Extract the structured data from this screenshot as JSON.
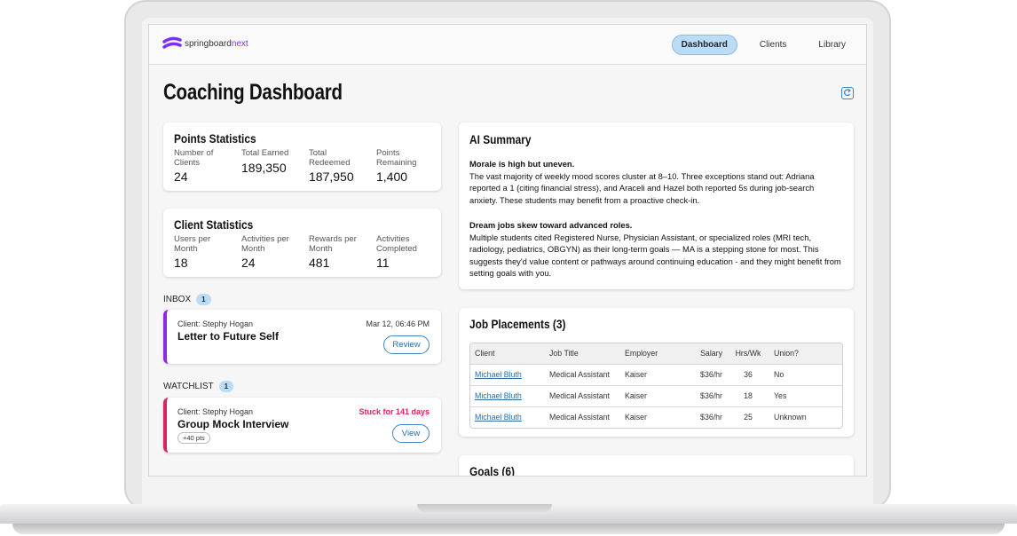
{
  "header": {
    "logo": {
      "brand": "springboard",
      "suffix": "next"
    },
    "nav": [
      {
        "label": "Dashboard",
        "active": true
      },
      {
        "label": "Clients",
        "active": false
      },
      {
        "label": "Library",
        "active": false
      }
    ]
  },
  "page_title": "Coaching Dashboard",
  "points_statistics": {
    "title": "Points Statistics",
    "stats": [
      {
        "label": "Number of Clients",
        "value": "24"
      },
      {
        "label": "Total Earned",
        "value": "189,350"
      },
      {
        "label": "Total Redeemed",
        "value": "187,950"
      },
      {
        "label": "Points Remaining",
        "value": "1,400"
      }
    ]
  },
  "client_statistics": {
    "title": "Client Statistics",
    "stats": [
      {
        "label": "Users per Month",
        "value": "18"
      },
      {
        "label": "Activities per Month",
        "value": "24"
      },
      {
        "label": "Rewards per Month",
        "value": "481"
      },
      {
        "label": "Activities Completed",
        "value": "11"
      }
    ]
  },
  "inbox": {
    "label": "INBOX",
    "count": "1",
    "items": [
      {
        "client": "Client: Stephy Hogan",
        "title": "Letter to Future Self",
        "date": "Mar 12, 06:46 PM",
        "action": "Review"
      }
    ]
  },
  "watchlist": {
    "label": "WATCHLIST",
    "count": "1",
    "items": [
      {
        "client": "Client: Stephy Hogan",
        "title": "Group Mock Interview",
        "status": "Stuck for 141 days",
        "badge": "+40 pts",
        "action": "View"
      }
    ]
  },
  "ai_summary": {
    "title": "AI Summary",
    "sections": [
      {
        "heading": "Morale is high but uneven.",
        "body": "The vast majority of weekly mood scores cluster at 8–10. Three exceptions stand out: Adriana reported a 1 (citing financial stress), and Araceli and Hazel both reported 5s during job-search anxiety. These students may benefit from a proactive check-in."
      },
      {
        "heading": "Dream jobs skew toward advanced roles.",
        "body": "Multiple students cited Registered Nurse, Physician Assistant, or specialized roles (MRI tech, radiology, pediatrics, OBGYN) as their long-term goals — MA is a stepping stone for most. This suggests they'd value content or pathways around continuing education - and they might benefit from setting goals with you."
      }
    ]
  },
  "job_placements": {
    "title": "Job Placements (3)",
    "columns": [
      "Client",
      "Job Title",
      "Employer",
      "Salary",
      "Hrs/Wk",
      "Union?"
    ],
    "rows": [
      [
        "Michael Bluth",
        "Medical Assistant",
        "Kaiser",
        "$36/hr",
        "36",
        "No"
      ],
      [
        "Michael Bluth",
        "Medical Assistant",
        "Kaiser",
        "$36/hr",
        "18",
        "Yes"
      ],
      [
        "Michael Bluth",
        "Medical Assistant",
        "Kaiser",
        "$36/hr",
        "25",
        "Unknown"
      ]
    ]
  },
  "goals": {
    "title": "Goals (6)"
  }
}
